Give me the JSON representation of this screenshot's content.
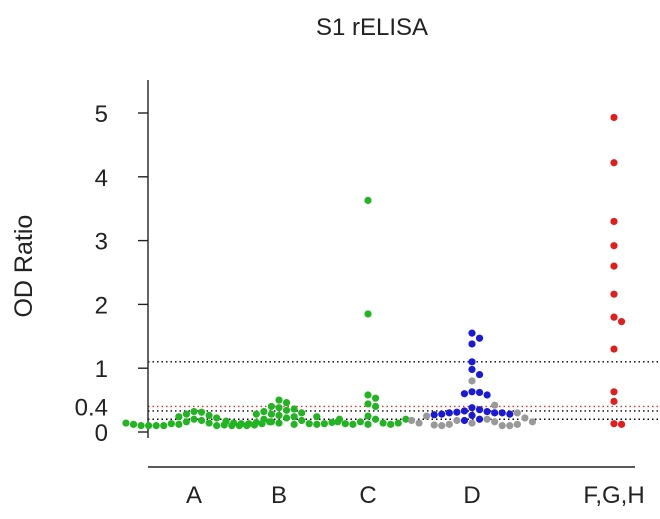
{
  "chart_data": {
    "type": "scatter",
    "title": "S1 rELISA",
    "xlabel": "",
    "ylabel": "OD Ratio",
    "ylim": [
      0,
      5.5
    ],
    "yticks": [
      0,
      1,
      2,
      3,
      4,
      5
    ],
    "extra_tick_labels": [
      {
        "value": 0.4,
        "label": "0.4"
      }
    ],
    "categories": [
      "A",
      "B",
      "C",
      "D",
      "F,G,H"
    ],
    "reference_lines": [
      {
        "value": 1.1,
        "color": "#000000"
      },
      {
        "value": 0.4,
        "color": "#e03030"
      },
      {
        "value": 0.33,
        "color": "#000000"
      },
      {
        "value": 0.2,
        "color": "#000000"
      }
    ],
    "series": [
      {
        "color": "#22b422",
        "points": {
          "A": [
            0.32,
            0.31,
            0.28,
            0.26,
            0.24,
            0.22,
            0.2,
            0.18,
            0.16,
            0.14,
            0.13,
            0.12,
            0.11,
            0.1,
            0.1,
            0.1,
            0.1,
            0.1,
            0.1,
            0.1,
            0.1,
            0.11,
            0.12,
            0.13,
            0.14,
            0.16
          ],
          "B": [
            0.5,
            0.46,
            0.4,
            0.38,
            0.36,
            0.34,
            0.32,
            0.3,
            0.28,
            0.26,
            0.24,
            0.22,
            0.2,
            0.18,
            0.16,
            0.15,
            0.14,
            0.13,
            0.13,
            0.12,
            0.12,
            0.13,
            0.13,
            0.14,
            0.15,
            0.17,
            0.2,
            0.24,
            0.28
          ],
          "C": [
            3.63,
            1.85,
            0.58,
            0.53,
            0.44,
            0.4,
            0.25,
            0.2,
            0.16,
            0.14,
            0.12,
            0.12,
            0.12,
            0.13,
            0.14,
            0.16,
            0.2
          ],
          "D": []
        }
      },
      {
        "color": "#1a1ad6",
        "points": {
          "D": [
            1.55,
            1.47,
            1.38,
            1.1,
            0.98,
            0.9,
            0.63,
            0.62,
            0.6,
            0.58,
            0.38,
            0.35,
            0.33,
            0.32,
            0.31,
            0.3,
            0.3,
            0.3,
            0.28,
            0.28,
            0.27,
            0.26,
            0.2,
            0.18
          ]
        }
      },
      {
        "color": "#999999",
        "points": {
          "D": [
            0.8,
            0.42,
            0.3,
            0.25,
            0.22,
            0.2,
            0.18,
            0.16,
            0.14,
            0.12,
            0.1,
            0.1,
            0.1,
            0.11,
            0.12,
            0.14,
            0.16,
            0.18
          ]
        }
      },
      {
        "color": "#e01e1e",
        "points": {
          "F,G,H": [
            4.93,
            4.22,
            3.3,
            2.92,
            2.6,
            2.16,
            1.8,
            1.73,
            1.3,
            0.63,
            0.48,
            0.13,
            0.12
          ]
        }
      }
    ]
  }
}
